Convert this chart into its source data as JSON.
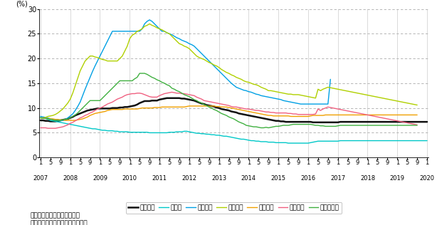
{
  "ylabel": "(%)",
  "ylim": [
    0,
    30
  ],
  "yticks": [
    0,
    5,
    10,
    15,
    20,
    25,
    30
  ],
  "background_color": "#ffffff",
  "note1": "参考：ギリシャは２月まで。",
  "note2": "資料：ユーロスタットから作成。",
  "legend_labels": [
    "ユーロ圏",
    "ドイツ",
    "ギリシャ",
    "スペイン",
    "フランス",
    "イタリア",
    "ポルトガル"
  ],
  "line_colors": [
    "#111111",
    "#00c8c8",
    "#00a0e4",
    "#b0d000",
    "#f0a000",
    "#f06080",
    "#40b040"
  ],
  "line_widths": [
    1.8,
    1.0,
    1.0,
    1.0,
    1.0,
    1.0,
    1.0
  ],
  "n_months": 157,
  "series": {
    "euro_zone": [
      7.5,
      7.5,
      7.4,
      7.4,
      7.3,
      7.3,
      7.3,
      7.4,
      7.5,
      7.6,
      7.7,
      7.8,
      8.0,
      8.2,
      8.5,
      8.7,
      8.9,
      9.1,
      9.3,
      9.5,
      9.6,
      9.7,
      9.8,
      9.9,
      9.9,
      9.9,
      9.9,
      9.9,
      9.9,
      10.0,
      10.0,
      10.0,
      10.1,
      10.1,
      10.2,
      10.2,
      10.3,
      10.4,
      10.5,
      10.7,
      11.0,
      11.2,
      11.4,
      11.4,
      11.4,
      11.5,
      11.5,
      11.5,
      11.7,
      11.8,
      11.9,
      12.0,
      12.0,
      12.0,
      12.0,
      12.0,
      12.0,
      11.9,
      11.9,
      11.8,
      11.7,
      11.6,
      11.5,
      11.3,
      11.1,
      10.9,
      10.8,
      10.6,
      10.5,
      10.4,
      10.3,
      10.1,
      10.0,
      9.8,
      9.7,
      9.6,
      9.5,
      9.3,
      9.2,
      9.1,
      8.9,
      8.8,
      8.7,
      8.6,
      8.5,
      8.4,
      8.3,
      8.2,
      8.1,
      8.0,
      7.9,
      7.8,
      7.7,
      7.6,
      7.5,
      7.4,
      7.4,
      7.3,
      7.3,
      7.2,
      7.2,
      7.2,
      7.2,
      7.2,
      7.2,
      7.2,
      7.2,
      7.2,
      7.2,
      7.2,
      7.1,
      7.1,
      7.1,
      7.1,
      7.1,
      7.1,
      7.1,
      7.1,
      7.1,
      7.1,
      7.1,
      7.2,
      7.2,
      7.2,
      7.2,
      7.2,
      7.2,
      7.2,
      7.2,
      7.2,
      7.2,
      7.2,
      7.2,
      7.2,
      7.2,
      7.2,
      7.2,
      7.2,
      7.2,
      7.2,
      7.2,
      7.2,
      7.2,
      7.2,
      7.2,
      7.2,
      7.2,
      7.2,
      7.2,
      7.2,
      7.2,
      7.2,
      7.2,
      7.2,
      7.2,
      7.2,
      7.2
    ],
    "germany": [
      8.1,
      8.0,
      7.9,
      7.7,
      7.5,
      7.4,
      7.3,
      7.2,
      7.1,
      7.0,
      6.9,
      6.8,
      6.7,
      6.6,
      6.5,
      6.4,
      6.3,
      6.2,
      6.1,
      6.0,
      5.9,
      5.8,
      5.8,
      5.7,
      5.6,
      5.5,
      5.5,
      5.4,
      5.4,
      5.4,
      5.3,
      5.3,
      5.2,
      5.2,
      5.2,
      5.2,
      5.1,
      5.1,
      5.1,
      5.1,
      5.1,
      5.1,
      5.1,
      5.1,
      5.0,
      5.0,
      5.0,
      5.0,
      5.0,
      5.0,
      5.0,
      5.0,
      5.1,
      5.1,
      5.1,
      5.2,
      5.2,
      5.2,
      5.3,
      5.3,
      5.2,
      5.1,
      5.0,
      4.9,
      4.9,
      4.8,
      4.8,
      4.7,
      4.7,
      4.6,
      4.6,
      4.5,
      4.5,
      4.4,
      4.3,
      4.3,
      4.2,
      4.1,
      4.0,
      3.9,
      3.8,
      3.7,
      3.7,
      3.6,
      3.5,
      3.4,
      3.4,
      3.3,
      3.3,
      3.2,
      3.2,
      3.2,
      3.1,
      3.1,
      3.1,
      3.0,
      3.0,
      3.0,
      3.0,
      3.0,
      2.9,
      2.9,
      2.9,
      2.9,
      2.9,
      2.9,
      2.9,
      2.9,
      2.9,
      3.0,
      3.1,
      3.2,
      3.3,
      3.3,
      3.3,
      3.3,
      3.3,
      3.3,
      3.3,
      3.3,
      3.3,
      3.4,
      3.4,
      3.4,
      3.4,
      3.4,
      3.4,
      3.4,
      3.4,
      3.4,
      3.4,
      3.4,
      3.4,
      3.4,
      3.4,
      3.4,
      3.4,
      3.4,
      3.4,
      3.4,
      3.4,
      3.4,
      3.4,
      3.4,
      3.4,
      3.4,
      3.4,
      3.4,
      3.4,
      3.4,
      3.4,
      3.4,
      3.4,
      3.4,
      3.4,
      3.4,
      3.4
    ],
    "greece": [
      8.3,
      8.2,
      8.1,
      8.0,
      7.8,
      7.7,
      7.6,
      7.5,
      7.4,
      7.5,
      7.7,
      8.0,
      8.4,
      8.8,
      9.5,
      10.3,
      11.2,
      12.5,
      13.8,
      15.0,
      16.2,
      17.4,
      18.5,
      19.5,
      20.5,
      21.5,
      22.5,
      23.5,
      24.5,
      25.5,
      25.5,
      25.5,
      25.5,
      25.5,
      25.5,
      25.5,
      25.5,
      25.5,
      25.5,
      25.5,
      25.5,
      26.0,
      27.0,
      27.5,
      27.8,
      27.5,
      27.0,
      26.5,
      26.0,
      25.5,
      25.5,
      25.2,
      25.0,
      24.8,
      24.5,
      24.2,
      24.0,
      23.7,
      23.5,
      23.3,
      23.0,
      22.8,
      22.5,
      22.0,
      21.5,
      21.0,
      20.5,
      20.0,
      19.5,
      19.0,
      18.5,
      18.0,
      17.5,
      17.0,
      16.5,
      16.0,
      15.5,
      15.0,
      14.6,
      14.2,
      14.0,
      13.8,
      13.6,
      13.5,
      13.3,
      13.2,
      13.0,
      12.8,
      12.7,
      12.5,
      12.4,
      12.3,
      12.2,
      12.1,
      12.0,
      11.9,
      11.8,
      11.7,
      11.5,
      11.4,
      11.3,
      11.2,
      11.1,
      11.0,
      10.9,
      10.8,
      10.8,
      10.8,
      10.8,
      10.8,
      10.8,
      10.8,
      10.8,
      10.8,
      10.8,
      10.8,
      10.8,
      15.8,
      null,
      null,
      null,
      null,
      null,
      null,
      null,
      null,
      null,
      null,
      null,
      null,
      null,
      null,
      null,
      null,
      null,
      null,
      null,
      null,
      null,
      null,
      null,
      null,
      null,
      null,
      null,
      null,
      null,
      null,
      null,
      null,
      null,
      null,
      null,
      null,
      null,
      null,
      null
    ],
    "spain": [
      8.0,
      8.0,
      8.1,
      8.3,
      8.4,
      8.5,
      8.7,
      9.0,
      9.4,
      9.8,
      10.4,
      11.0,
      11.8,
      13.0,
      14.5,
      16.0,
      17.5,
      18.5,
      19.5,
      20.0,
      20.5,
      20.5,
      20.3,
      20.2,
      20.0,
      19.8,
      19.7,
      19.5,
      19.5,
      19.5,
      19.5,
      19.5,
      20.0,
      20.5,
      21.5,
      22.5,
      24.0,
      24.7,
      25.0,
      25.5,
      25.7,
      26.0,
      26.5,
      26.7,
      27.0,
      26.7,
      26.5,
      26.2,
      26.0,
      25.8,
      25.5,
      25.2,
      25.0,
      24.5,
      24.0,
      23.5,
      23.0,
      22.8,
      22.5,
      22.3,
      22.0,
      21.5,
      21.0,
      20.5,
      20.2,
      20.0,
      19.8,
      19.5,
      19.2,
      19.0,
      18.7,
      18.5,
      18.2,
      17.8,
      17.5,
      17.2,
      17.0,
      16.7,
      16.5,
      16.2,
      16.0,
      15.8,
      15.5,
      15.3,
      15.2,
      15.0,
      14.8,
      14.7,
      14.5,
      14.2,
      14.0,
      13.8,
      13.5,
      13.5,
      13.4,
      13.3,
      13.2,
      13.1,
      13.0,
      12.9,
      12.8,
      12.8,
      12.7,
      12.7,
      12.7,
      12.6,
      12.5,
      12.4,
      12.3,
      12.2,
      12.1,
      12.0,
      13.8,
      13.5,
      13.8,
      14.0,
      14.2,
      14.1,
      14.0,
      13.9,
      13.8,
      13.7,
      13.6,
      13.5,
      13.4,
      13.3,
      13.2,
      13.1,
      13.0,
      12.9,
      12.8,
      12.7,
      12.6,
      12.5,
      12.4,
      12.3,
      12.2,
      12.1,
      12.0,
      11.9,
      11.8,
      11.7,
      11.6,
      11.5,
      11.4,
      11.3,
      11.2,
      11.1,
      11.0,
      10.9,
      10.8,
      10.7,
      10.6
    ],
    "france": [
      8.0,
      8.0,
      7.9,
      7.9,
      7.8,
      7.8,
      7.7,
      7.7,
      7.6,
      7.6,
      7.5,
      7.5,
      7.5,
      7.5,
      7.5,
      7.6,
      7.7,
      7.8,
      8.0,
      8.2,
      8.5,
      8.7,
      8.9,
      9.0,
      9.1,
      9.2,
      9.3,
      9.5,
      9.6,
      9.7,
      9.7,
      9.7,
      9.7,
      9.7,
      9.8,
      9.8,
      9.8,
      9.8,
      9.8,
      9.8,
      9.9,
      10.0,
      10.0,
      10.0,
      10.0,
      10.0,
      10.1,
      10.1,
      10.1,
      10.2,
      10.2,
      10.2,
      10.2,
      10.2,
      10.2,
      10.2,
      10.2,
      10.2,
      10.2,
      10.3,
      10.4,
      10.4,
      10.4,
      10.4,
      10.4,
      10.4,
      10.4,
      10.4,
      10.4,
      10.4,
      10.4,
      10.3,
      10.3,
      10.2,
      10.2,
      10.2,
      10.1,
      10.0,
      9.9,
      9.8,
      9.7,
      9.6,
      9.5,
      9.4,
      9.3,
      9.2,
      9.1,
      9.0,
      8.9,
      8.8,
      8.7,
      8.6,
      8.5,
      8.5,
      8.4,
      8.4,
      8.4,
      8.4,
      8.4,
      8.4,
      8.4,
      8.3,
      8.3,
      8.3,
      8.3,
      8.3,
      8.3,
      8.3,
      8.3,
      8.4,
      8.5,
      8.5,
      8.5,
      8.5,
      8.5,
      8.6,
      8.6,
      8.6,
      8.6,
      8.6,
      8.6,
      8.6,
      8.6,
      8.6,
      8.6,
      8.6,
      8.6,
      8.6,
      8.6,
      8.6,
      8.6,
      8.6,
      8.6,
      8.6,
      8.6,
      8.6,
      8.6,
      8.6,
      8.6,
      8.6,
      8.6,
      8.6,
      8.6,
      8.6,
      8.6,
      8.6,
      8.6,
      8.6,
      8.6,
      8.6,
      8.6,
      8.6,
      8.6
    ],
    "italy": [
      6.0,
      6.0,
      6.0,
      5.9,
      5.9,
      5.9,
      5.9,
      6.0,
      6.1,
      6.2,
      6.4,
      6.6,
      6.9,
      7.1,
      7.4,
      7.7,
      8.0,
      8.2,
      8.5,
      8.7,
      9.0,
      9.2,
      9.5,
      9.8,
      10.0,
      10.2,
      10.5,
      10.8,
      11.0,
      11.2,
      11.5,
      11.8,
      12.0,
      12.2,
      12.5,
      12.7,
      12.8,
      12.9,
      12.9,
      13.0,
      13.0,
      12.9,
      12.7,
      12.5,
      12.3,
      12.2,
      12.2,
      12.2,
      12.5,
      12.7,
      12.9,
      13.0,
      13.1,
      13.2,
      13.1,
      13.0,
      13.0,
      12.9,
      12.9,
      12.8,
      12.7,
      12.6,
      12.5,
      12.2,
      12.0,
      11.8,
      11.5,
      11.4,
      11.3,
      11.2,
      11.1,
      11.0,
      10.9,
      10.8,
      10.7,
      10.6,
      10.5,
      10.3,
      10.2,
      10.2,
      10.1,
      10.0,
      9.9,
      9.8,
      9.8,
      9.7,
      9.6,
      9.5,
      9.5,
      9.4,
      9.3,
      9.2,
      9.2,
      9.1,
      9.1,
      9.0,
      9.0,
      9.0,
      9.0,
      9.0,
      8.9,
      8.9,
      8.8,
      8.8,
      8.7,
      8.7,
      8.7,
      8.7,
      8.7,
      8.7,
      8.7,
      8.8,
      9.8,
      9.5,
      9.8,
      10.0,
      10.2,
      10.1,
      10.0,
      9.9,
      9.8,
      9.7,
      9.6,
      9.5,
      9.4,
      9.3,
      9.2,
      9.1,
      9.0,
      8.9,
      8.8,
      8.7,
      8.6,
      8.5,
      8.4,
      8.3,
      8.2,
      8.1,
      8.0,
      7.9,
      7.8,
      7.7,
      7.6,
      7.5,
      7.4,
      7.3,
      7.2,
      7.1,
      7.0,
      6.9,
      6.8,
      6.7,
      6.6
    ],
    "portugal": [
      8.0,
      7.9,
      7.9,
      7.8,
      7.7,
      7.6,
      7.5,
      7.5,
      7.5,
      7.6,
      7.7,
      7.8,
      8.0,
      8.3,
      8.6,
      9.0,
      9.5,
      10.0,
      10.5,
      11.0,
      11.5,
      11.5,
      11.5,
      11.5,
      11.5,
      12.0,
      12.5,
      13.0,
      13.5,
      14.0,
      14.5,
      15.0,
      15.5,
      15.5,
      15.5,
      15.5,
      15.5,
      15.5,
      15.9,
      16.2,
      17.0,
      17.0,
      17.0,
      16.8,
      16.5,
      16.2,
      16.0,
      15.7,
      15.5,
      15.2,
      15.0,
      14.7,
      14.5,
      14.0,
      13.8,
      13.5,
      13.3,
      13.0,
      12.7,
      12.5,
      12.3,
      12.0,
      11.7,
      11.5,
      11.2,
      11.0,
      10.7,
      10.5,
      10.2,
      10.0,
      9.7,
      9.5,
      9.2,
      8.9,
      8.7,
      8.5,
      8.2,
      8.0,
      7.8,
      7.5,
      7.2,
      7.0,
      6.8,
      6.5,
      6.4,
      6.3,
      6.2,
      6.2,
      6.1,
      6.0,
      6.0,
      6.1,
      6.0,
      6.1,
      6.2,
      6.3,
      6.3,
      6.4,
      6.5,
      6.5,
      6.5,
      6.6,
      6.7,
      6.7,
      6.7,
      6.7,
      6.7,
      6.7,
      6.7,
      6.7,
      6.6,
      6.5,
      6.5,
      6.4,
      6.4,
      6.3,
      6.3,
      6.3,
      6.3,
      6.3,
      6.4,
      6.5,
      6.5,
      6.5,
      6.5,
      6.5,
      6.5,
      6.5,
      6.5,
      6.5,
      6.5,
      6.5,
      6.5,
      6.5,
      6.5,
      6.5,
      6.5,
      6.5,
      6.5,
      6.5,
      6.5,
      6.5,
      6.5,
      6.5,
      6.5,
      6.5,
      6.5,
      6.5,
      6.5,
      6.5,
      6.5,
      6.5,
      6.5
    ]
  }
}
